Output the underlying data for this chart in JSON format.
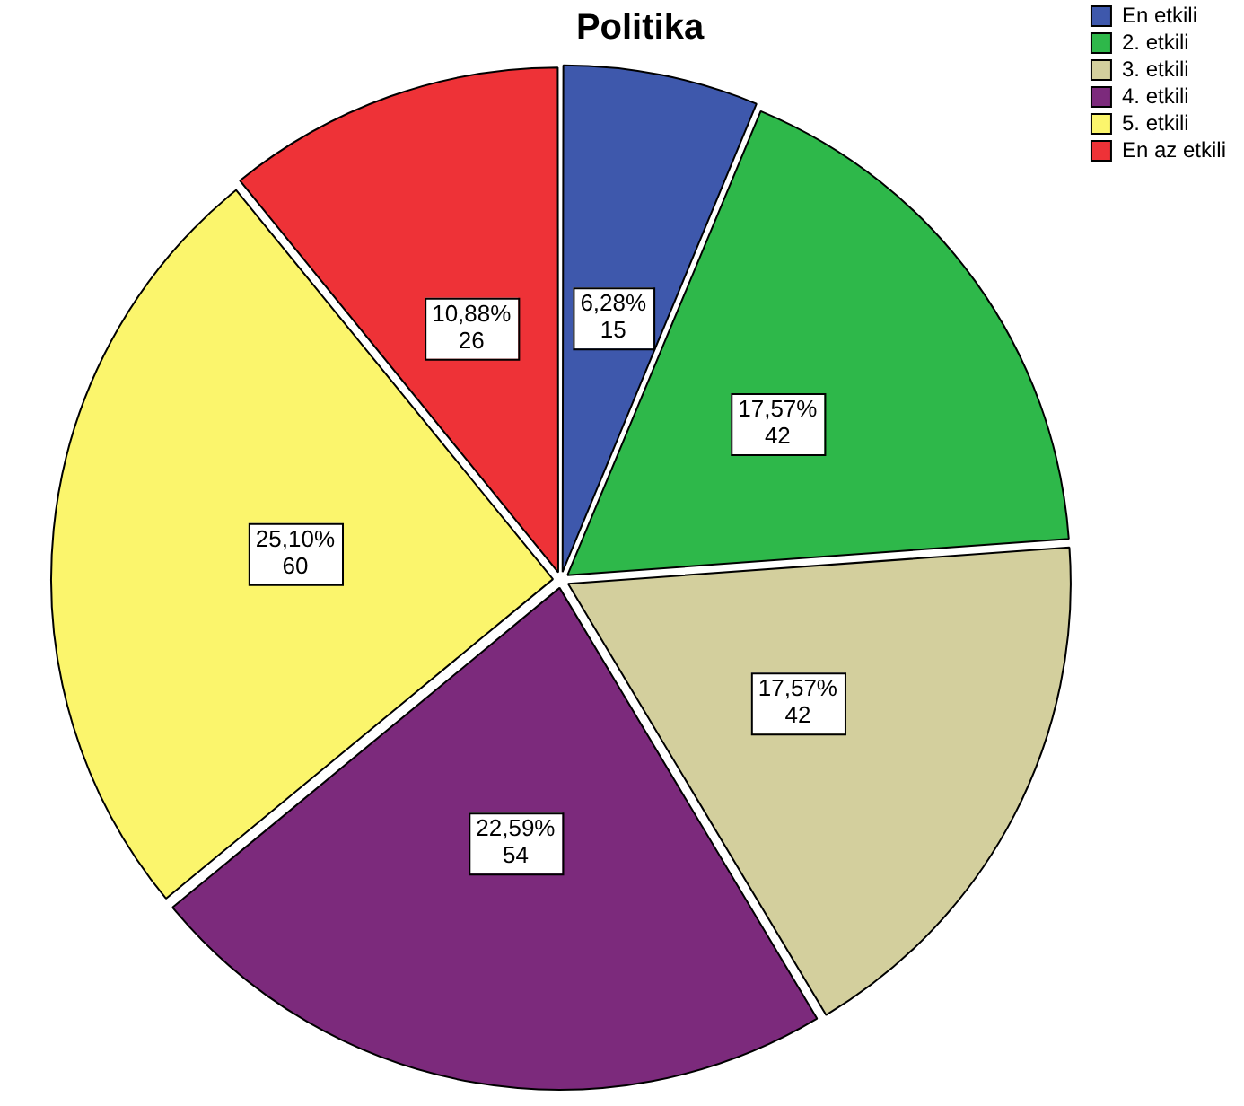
{
  "chart_data": {
    "type": "pie",
    "title": "Politika",
    "categories": [
      "En etkili",
      "2. etkili",
      "3. etkili",
      "4. etkili",
      "5. etkili",
      "En az etkili"
    ],
    "values": [
      15,
      42,
      42,
      54,
      60,
      26
    ],
    "value_labels": [
      "6,28%\n15",
      "17,57%\n42",
      "17,57%\n42",
      "22,59%\n54",
      "25,10%\n60",
      "10,88%\n26"
    ],
    "colors": [
      "#3e58ac",
      "#2eb84a",
      "#d3cf9d",
      "#7c2a7c",
      "#fbf56c",
      "#ee3237"
    ],
    "legend": "top right"
  }
}
